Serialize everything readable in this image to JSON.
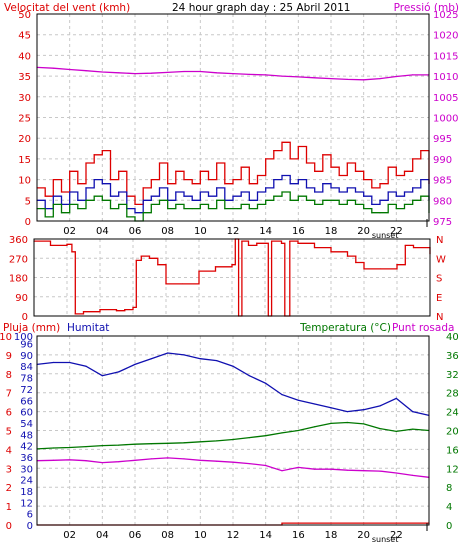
{
  "title": "24 hour graph day : 25 Abril 2011",
  "colors": {
    "red": "#dd0000",
    "blue": "#1010b0",
    "green": "#007700",
    "magenta": "#cc00cc",
    "grid": "#c8c8c8"
  },
  "chart_data": [
    {
      "type": "line",
      "title": "24 hour graph day : 25 Abril 2011",
      "left_axis_label": "Velocitat del vent (kmh)",
      "right_axis_label": "Pressió (mb)",
      "x_ticks": [
        "02",
        "04",
        "06",
        "08",
        "10",
        "12",
        "14",
        "16",
        "18",
        "20",
        "22"
      ],
      "sunset_label": "sunset",
      "y_left_ticks": [
        0,
        5,
        10,
        15,
        20,
        25,
        30,
        35,
        40,
        45,
        50
      ],
      "y_right_ticks": [
        975,
        980,
        985,
        990,
        995,
        1000,
        1005,
        1010,
        1015,
        1020,
        1025
      ],
      "y_left_range": [
        0,
        50
      ],
      "y_right_range": [
        975,
        1025
      ],
      "x_range_hours": [
        0,
        24
      ],
      "grid": true,
      "series": [
        {
          "key": "gust",
          "color": "#dd0000",
          "axis": "left",
          "x": [
            0,
            0.5,
            1,
            1.5,
            2,
            2.5,
            3,
            3.5,
            4,
            4.5,
            5,
            5.5,
            6,
            6.5,
            7,
            7.5,
            8,
            8.5,
            9,
            9.5,
            10,
            10.5,
            11,
            11.5,
            12,
            12.5,
            13,
            13.5,
            14,
            14.5,
            15,
            15.5,
            16,
            16.5,
            17,
            17.5,
            18,
            18.5,
            19,
            19.5,
            20,
            20.5,
            21,
            21.5,
            22,
            22.5,
            23,
            23.5,
            24
          ],
          "y": [
            8,
            6,
            10,
            7,
            12,
            9,
            14,
            16,
            17,
            10,
            12,
            6,
            4,
            8,
            10,
            14,
            9,
            12,
            10,
            9,
            12,
            10,
            14,
            9,
            10,
            13,
            9,
            11,
            15,
            17,
            19,
            15,
            18,
            14,
            12,
            16,
            13,
            11,
            14,
            12,
            10,
            8,
            9,
            13,
            11,
            12,
            15,
            17,
            9
          ]
        },
        {
          "key": "wind",
          "color": "#1010b0",
          "axis": "left",
          "x": [
            0,
            0.5,
            1,
            1.5,
            2,
            2.5,
            3,
            3.5,
            4,
            4.5,
            5,
            5.5,
            6,
            6.5,
            7,
            7.5,
            8,
            8.5,
            9,
            9.5,
            10,
            10.5,
            11,
            11.5,
            12,
            12.5,
            13,
            13.5,
            14,
            14.5,
            15,
            15.5,
            16,
            16.5,
            17,
            17.5,
            18,
            18.5,
            19,
            19.5,
            20,
            20.5,
            21,
            21.5,
            22,
            22.5,
            23,
            23.5,
            24
          ],
          "y": [
            5,
            3,
            6,
            4,
            7,
            5,
            8,
            10,
            9,
            6,
            7,
            3,
            2,
            5,
            6,
            8,
            5,
            7,
            6,
            5,
            7,
            6,
            8,
            5,
            6,
            7,
            5,
            7,
            8,
            10,
            11,
            9,
            10,
            8,
            7,
            9,
            8,
            7,
            8,
            7,
            6,
            4,
            5,
            7,
            6,
            7,
            8,
            10,
            5
          ]
        },
        {
          "key": "avg_wind",
          "color": "#007700",
          "axis": "left",
          "x": [
            0,
            0.5,
            1,
            1.5,
            2,
            2.5,
            3,
            3.5,
            4,
            4.5,
            5,
            5.5,
            6,
            6.5,
            7,
            7.5,
            8,
            8.5,
            9,
            9.5,
            10,
            10.5,
            11,
            11.5,
            12,
            12.5,
            13,
            13.5,
            14,
            14.5,
            15,
            15.5,
            16,
            16.5,
            17,
            17.5,
            18,
            18.5,
            19,
            19.5,
            20,
            20.5,
            21,
            21.5,
            22,
            22.5,
            23,
            23.5,
            24
          ],
          "y": [
            3,
            1,
            4,
            2,
            4,
            3,
            5,
            6,
            5,
            3,
            4,
            1,
            0,
            2,
            4,
            5,
            3,
            4,
            3,
            3,
            4,
            3,
            5,
            3,
            3,
            4,
            3,
            4,
            5,
            6,
            7,
            5,
            6,
            5,
            4,
            5,
            5,
            4,
            5,
            4,
            3,
            2,
            2,
            4,
            3,
            4,
            5,
            6,
            2
          ]
        },
        {
          "key": "pressure",
          "color": "#cc00cc",
          "axis": "right",
          "x": [
            0,
            1,
            2,
            3,
            4,
            5,
            6,
            7,
            8,
            9,
            10,
            11,
            12,
            13,
            14,
            15,
            16,
            17,
            18,
            19,
            20,
            21,
            22,
            23,
            24
          ],
          "y": [
            1012.1,
            1011.9,
            1011.6,
            1011.3,
            1011.0,
            1010.8,
            1010.6,
            1010.7,
            1010.9,
            1011.1,
            1011.1,
            1010.8,
            1010.6,
            1010.4,
            1010.3,
            1010.0,
            1009.8,
            1009.6,
            1009.4,
            1009.2,
            1009.1,
            1009.4,
            1009.9,
            1010.3,
            1010.3
          ]
        }
      ]
    },
    {
      "type": "line",
      "title": "",
      "right_axis_label": "N W S E N",
      "right_axis_letters": [
        "N",
        "W",
        "S",
        "E",
        "N"
      ],
      "y_left_ticks": [
        0,
        90,
        180,
        270,
        360
      ],
      "y_left_range": [
        0,
        360
      ],
      "x_range_hours": [
        0,
        24
      ],
      "grid": true,
      "series": [
        {
          "key": "wind_direction",
          "color": "#dd0000",
          "axis": "left",
          "x": [
            0,
            1,
            2,
            2.3,
            2.5,
            3,
            4,
            5,
            5.5,
            6,
            6.2,
            6.5,
            7,
            7.5,
            8,
            9,
            10,
            11,
            12,
            12.2,
            12.4,
            12.6,
            13,
            13.5,
            14,
            14.2,
            14.4,
            15,
            15.2,
            15.5,
            16,
            17,
            18,
            19,
            19.5,
            20,
            21,
            22,
            22.5,
            23,
            24
          ],
          "y": [
            350,
            330,
            335,
            300,
            10,
            20,
            30,
            25,
            30,
            40,
            260,
            280,
            270,
            240,
            150,
            150,
            210,
            230,
            240,
            360,
            0,
            350,
            330,
            340,
            340,
            0,
            350,
            340,
            0,
            350,
            340,
            320,
            300,
            280,
            250,
            220,
            220,
            240,
            330,
            320,
            290
          ]
        }
      ]
    },
    {
      "type": "line",
      "title": "",
      "left_axis_label": "Pluja (mm)",
      "left2_axis_label": "Humitat",
      "right_axis_label": "Temperatura (°C)",
      "right2_axis_label": "Punt rosada",
      "x_ticks": [
        "02",
        "04",
        "06",
        "08",
        "10",
        "12",
        "14",
        "16",
        "18",
        "20",
        "22"
      ],
      "sunset_label": "sunset",
      "y_rain_ticks": [
        0,
        1,
        2,
        3,
        4,
        5,
        6,
        7,
        8,
        9,
        10
      ],
      "y_humidity_ticks": [
        0,
        6,
        12,
        18,
        24,
        30,
        36,
        42,
        48,
        54,
        60,
        66,
        72,
        78,
        84,
        90,
        96,
        100
      ],
      "y_right_ticks": [
        0,
        4,
        8,
        12,
        16,
        20,
        24,
        28,
        32,
        36,
        40
      ],
      "y_rain_range": [
        0,
        10
      ],
      "y_humidity_range": [
        0,
        100
      ],
      "y_right_range": [
        0,
        40
      ],
      "x_range_hours": [
        0,
        24
      ],
      "grid": true,
      "series": [
        {
          "key": "humidity",
          "color": "#1010b0",
          "axis": "humidity",
          "x": [
            0,
            1,
            2,
            3,
            4,
            5,
            6,
            7,
            8,
            9,
            10,
            11,
            12,
            13,
            14,
            15,
            16,
            17,
            18,
            19,
            20,
            21,
            22,
            23,
            24
          ],
          "y": [
            85,
            86,
            86,
            84,
            79,
            81,
            85,
            88,
            91,
            90,
            88,
            87,
            84,
            79,
            75,
            69,
            66,
            64,
            62,
            60,
            61,
            63,
            67,
            60,
            58
          ]
        },
        {
          "key": "temperature",
          "color": "#007700",
          "axis": "right",
          "x": [
            0,
            1,
            2,
            3,
            4,
            5,
            6,
            7,
            8,
            9,
            10,
            11,
            12,
            13,
            14,
            15,
            16,
            17,
            18,
            19,
            20,
            21,
            22,
            23,
            24
          ],
          "y": [
            16.1,
            16.3,
            16.4,
            16.6,
            16.8,
            16.9,
            17.1,
            17.2,
            17.3,
            17.4,
            17.6,
            17.8,
            18.1,
            18.5,
            18.9,
            19.5,
            20.0,
            20.8,
            21.5,
            21.7,
            21.4,
            20.4,
            19.8,
            20.3,
            20.0
          ]
        },
        {
          "key": "dew_point",
          "color": "#cc00cc",
          "axis": "right",
          "x": [
            0,
            1,
            2,
            3,
            4,
            5,
            6,
            7,
            8,
            9,
            10,
            11,
            12,
            13,
            14,
            15,
            16,
            17,
            18,
            19,
            20,
            21,
            22,
            23,
            24
          ],
          "y": [
            13.6,
            13.7,
            13.8,
            13.6,
            13.2,
            13.4,
            13.7,
            14.0,
            14.2,
            14.0,
            13.7,
            13.5,
            13.3,
            13.0,
            12.6,
            11.5,
            12.2,
            11.8,
            11.8,
            11.6,
            11.5,
            11.4,
            11.0,
            10.5,
            10.1
          ]
        },
        {
          "key": "rain",
          "color": "#dd0000",
          "axis": "rain",
          "x": [
            0,
            12,
            15,
            24
          ],
          "y": [
            0,
            0,
            0.1,
            0.1
          ]
        }
      ]
    }
  ]
}
